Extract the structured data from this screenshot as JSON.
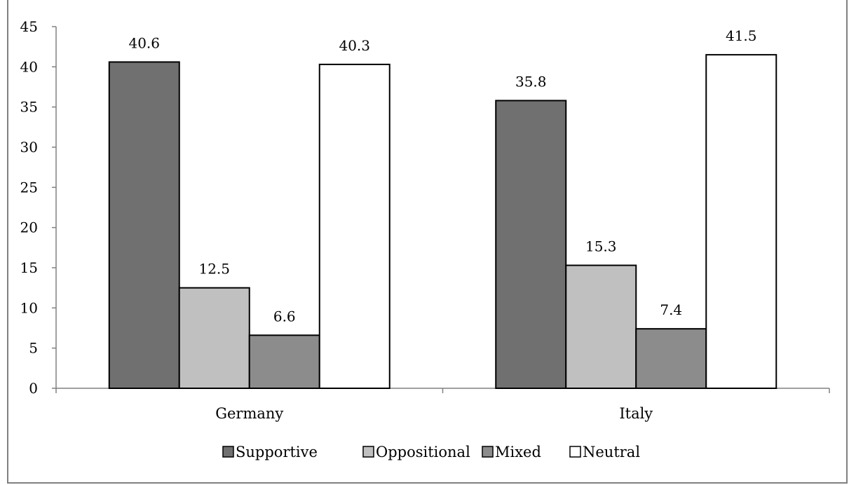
{
  "chart_data": {
    "type": "bar",
    "categories": [
      "Germany",
      "Italy"
    ],
    "series": [
      {
        "name": "Supportive",
        "values": [
          40.6,
          35.8
        ],
        "color": "#707070"
      },
      {
        "name": "Oppositional",
        "values": [
          12.5,
          15.3
        ],
        "color": "#c0c0c0"
      },
      {
        "name": "Mixed",
        "values": [
          6.6,
          7.4
        ],
        "color": "#8c8c8c"
      },
      {
        "name": "Neutral",
        "values": [
          40.3,
          41.5
        ],
        "color": "#ffffff"
      }
    ],
    "ylim": [
      0,
      45
    ],
    "yticks": [
      "0",
      "5",
      "10",
      "15",
      "20",
      "25",
      "30",
      "35",
      "40",
      "45"
    ],
    "grid": false,
    "legend_position": "bottom",
    "title": "",
    "xlabel": "",
    "ylabel": ""
  }
}
